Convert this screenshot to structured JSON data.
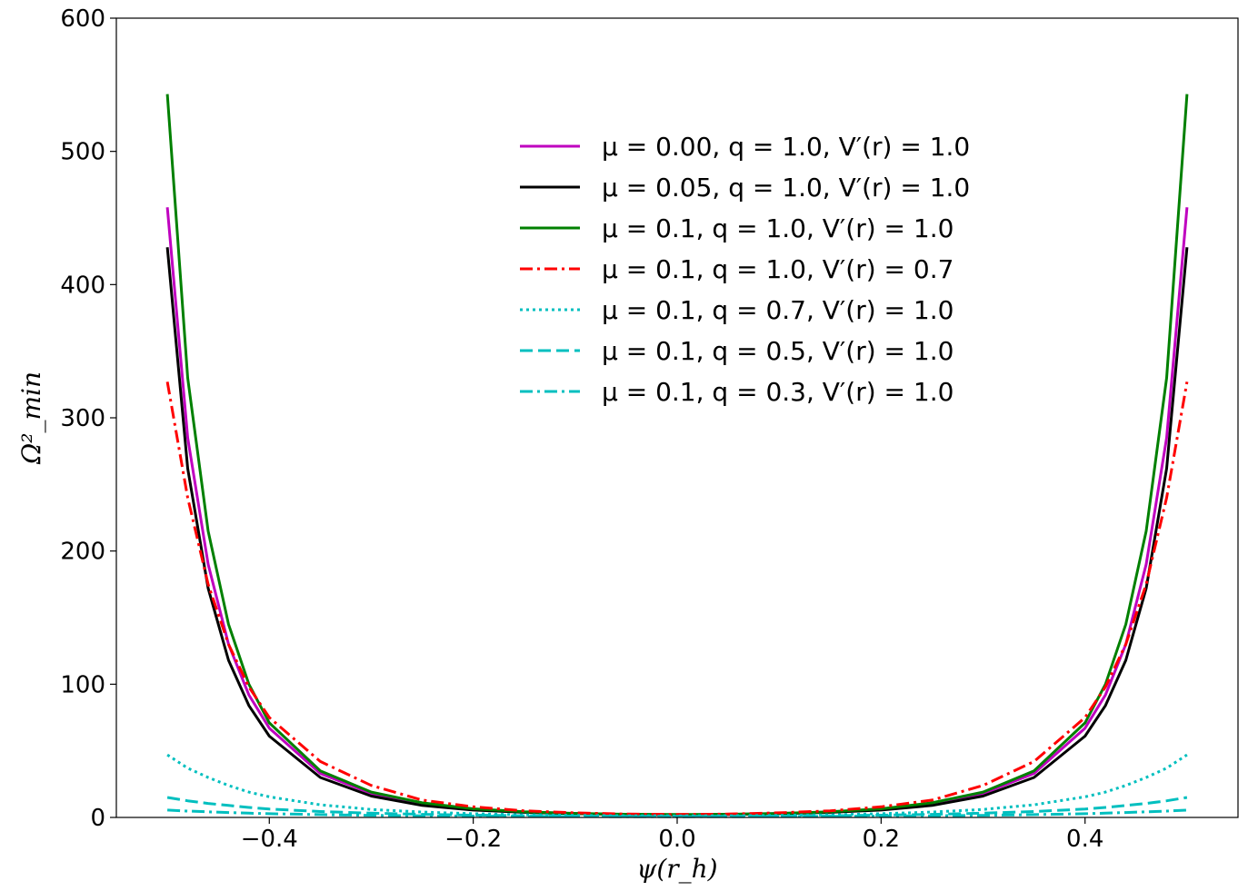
{
  "chart_data": {
    "type": "line",
    "title": "",
    "xlabel": "ψ(r_h)",
    "ylabel": "Ω²_min",
    "xlim": [
      -0.55,
      0.55
    ],
    "ylim": [
      0,
      600
    ],
    "x_ticks": [
      -0.4,
      -0.2,
      0.0,
      0.2,
      0.4
    ],
    "x_tick_labels": [
      "−0.4",
      "−0.2",
      "0.0",
      "0.2",
      "0.4"
    ],
    "y_ticks": [
      0,
      100,
      200,
      300,
      400,
      500,
      600
    ],
    "y_tick_labels": [
      "0",
      "100",
      "200",
      "300",
      "400",
      "500",
      "600"
    ],
    "grid": false,
    "legend_position": "upper-center",
    "x": [
      -0.5,
      -0.48,
      -0.46,
      -0.44,
      -0.42,
      -0.4,
      -0.35,
      -0.3,
      -0.25,
      -0.2,
      -0.15,
      -0.1,
      -0.05,
      0.0,
      0.05,
      0.1,
      0.15,
      0.2,
      0.25,
      0.3,
      0.35,
      0.4,
      0.42,
      0.44,
      0.46,
      0.48,
      0.5
    ],
    "series": [
      {
        "name": "μ = 0.00, q = 1.0, V′(r) = 1.0",
        "color": "#bf00bf",
        "style": "solid",
        "values": [
          458,
          285,
          190,
          130,
          92,
          67,
          33,
          18,
          10,
          6,
          4,
          3,
          2.2,
          2,
          2.2,
          3,
          4,
          6,
          10,
          18,
          33,
          67,
          92,
          130,
          190,
          285,
          458
        ]
      },
      {
        "name": "μ = 0.05, q = 1.0, V′(r) = 1.0",
        "color": "#000000",
        "style": "solid",
        "values": [
          428,
          262,
          172,
          118,
          84,
          61,
          30,
          16,
          9,
          5.5,
          3.8,
          2.8,
          2.2,
          2,
          2.2,
          2.8,
          3.8,
          5.5,
          9,
          16,
          30,
          61,
          84,
          118,
          172,
          262,
          428
        ]
      },
      {
        "name": "μ = 0.1, q = 1.0, V′(r) = 1.0",
        "color": "#008000",
        "style": "solid",
        "values": [
          543,
          330,
          215,
          145,
          100,
          71,
          35,
          19,
          11,
          6.5,
          4.2,
          3,
          2.4,
          2.2,
          2.4,
          3,
          4.2,
          6.5,
          11,
          19,
          35,
          71,
          100,
          145,
          215,
          330,
          543
        ]
      },
      {
        "name": "μ = 0.1, q = 1.0, V′(r) = 0.7",
        "color": "#ff0000",
        "style": "dashdot",
        "values": [
          327,
          240,
          175,
          130,
          98,
          75,
          42,
          24,
          13,
          8,
          5,
          3.5,
          2.5,
          2.2,
          2.5,
          3.5,
          5,
          8,
          13,
          24,
          42,
          75,
          98,
          130,
          175,
          240,
          327
        ]
      },
      {
        "name": "μ = 0.1, q = 0.7, V′(r) = 1.0",
        "color": "#00bfbf",
        "style": "dotted",
        "values": [
          47,
          37,
          30,
          24,
          19,
          15.5,
          9.5,
          6,
          4,
          2.8,
          2,
          1.6,
          1.3,
          1.2,
          1.3,
          1.6,
          2,
          2.8,
          4,
          6,
          9.5,
          15.5,
          19,
          24,
          30,
          37,
          47
        ]
      },
      {
        "name": "μ = 0.1, q = 0.5, V′(r) = 1.0",
        "color": "#00bfbf",
        "style": "dashed",
        "values": [
          15,
          12.5,
          10.5,
          9,
          7.5,
          6.3,
          4.4,
          3.2,
          2.3,
          1.7,
          1.3,
          1,
          0.9,
          0.8,
          0.9,
          1,
          1.3,
          1.7,
          2.3,
          3.2,
          4.4,
          6.3,
          7.5,
          9,
          10.5,
          12.5,
          15
        ]
      },
      {
        "name": "μ = 0.1, q = 0.3, V′(r) = 1.0",
        "color": "#00bfbf",
        "style": "dashdot",
        "values": [
          5.5,
          4.8,
          4.2,
          3.7,
          3.2,
          2.8,
          2.1,
          1.6,
          1.2,
          1,
          0.8,
          0.65,
          0.6,
          0.55,
          0.6,
          0.65,
          0.8,
          1,
          1.2,
          1.6,
          2.1,
          2.8,
          3.2,
          3.7,
          4.2,
          4.8,
          5.5
        ]
      }
    ]
  }
}
